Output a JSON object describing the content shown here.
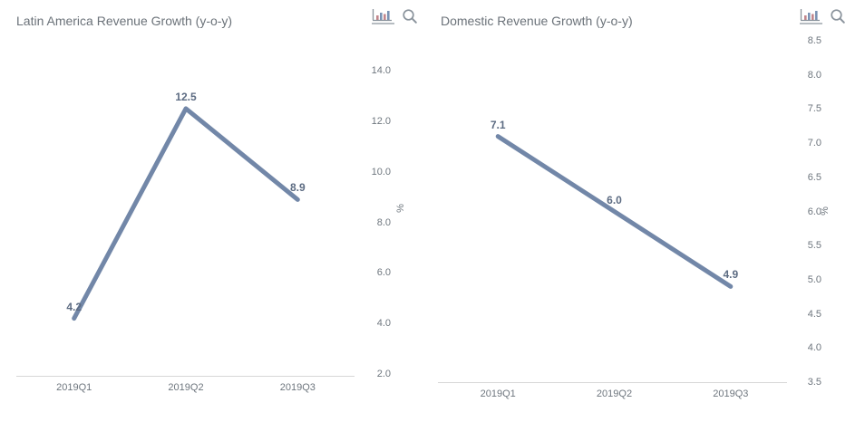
{
  "colors": {
    "line": "#7287A8",
    "title_text": "#6B7279",
    "axis_text": "#6E767E",
    "data_label_text": "#5C6B82",
    "axis_line": "#D7D7D7",
    "icon_gray": "#8A939C",
    "icon_bar_red": "#C2868C",
    "icon_bar_blue": "#7A93B4"
  },
  "toolbar": {
    "chart_type_icon": "column-chart",
    "zoom_icon": "magnifier"
  },
  "chart_data": [
    {
      "type": "line",
      "title": "Latin America Revenue Growth (y-o-y)",
      "categories": [
        "2019Q1",
        "2019Q2",
        "2019Q3"
      ],
      "values": [
        4.2,
        12.5,
        8.9
      ],
      "data_labels": [
        "4.2",
        "12.5",
        "8.9"
      ],
      "ylabel": "%",
      "ylim": [
        2.0,
        14.0
      ],
      "yticks": [
        "14.0",
        "12.0",
        "10.0",
        "8.0",
        "6.0",
        "4.0",
        "2.0"
      ],
      "y_axis_position": "right",
      "grid": false,
      "legend": false
    },
    {
      "type": "line",
      "title": "Domestic Revenue Growth (y-o-y)",
      "categories": [
        "2019Q1",
        "2019Q2",
        "2019Q3"
      ],
      "values": [
        7.1,
        6.0,
        4.9
      ],
      "data_labels": [
        "7.1",
        "6.0",
        "4.9"
      ],
      "ylabel": "%",
      "ylim": [
        3.5,
        8.5
      ],
      "yticks": [
        "8.5",
        "8.0",
        "7.5",
        "7.0",
        "6.5",
        "6.0",
        "5.5",
        "5.0",
        "4.5",
        "4.0",
        "3.5"
      ],
      "y_axis_position": "right",
      "grid": false,
      "legend": false
    }
  ]
}
